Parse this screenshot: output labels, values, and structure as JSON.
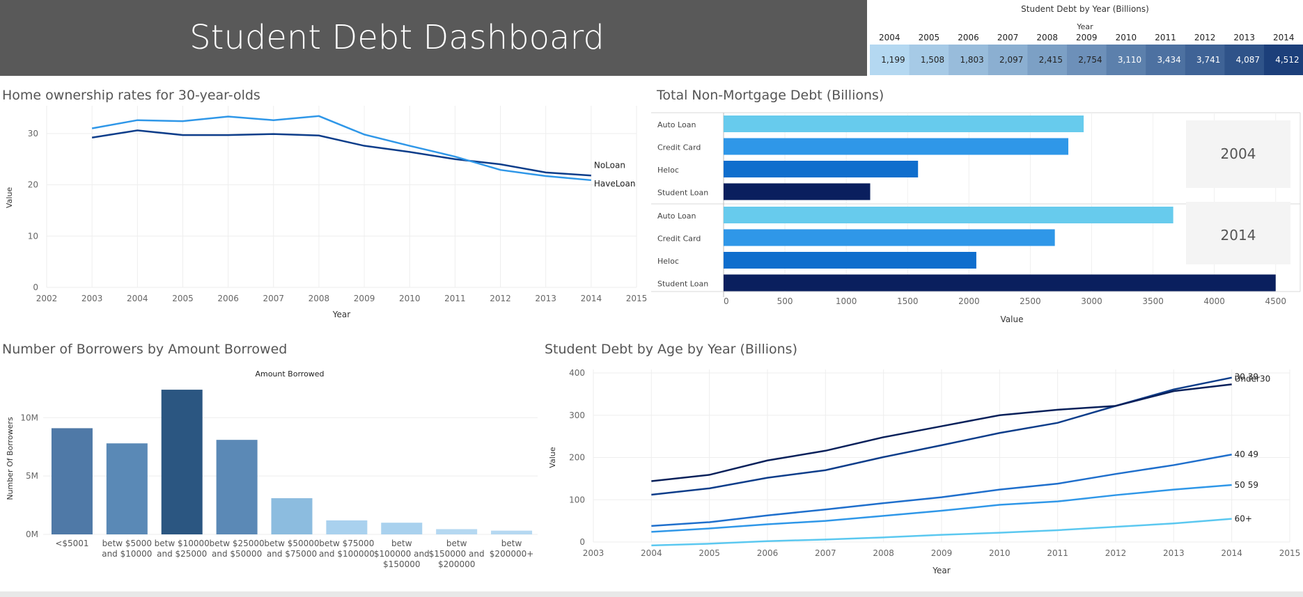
{
  "dashboard": {
    "title": "Student Debt Dashboard"
  },
  "charts": {
    "year_table_title": "Student Debt by Year (Billions)",
    "year_table_header": "Year",
    "home_title": "Home ownership rates for 30-year-olds",
    "nonmortgage_title": "Total Non-Mortgage Debt (Billions)",
    "borrowers_title": "Number of Borrowers by Amount Borrowed",
    "age_title": "Student Debt by Age by Year (Billions)"
  },
  "colors": {
    "title_bar": "#595959",
    "header_text": "#ffffff"
  },
  "chart_data": [
    {
      "type": "table",
      "title": "Student Debt by Year (Billions)",
      "header": "Year",
      "years": [
        "2004",
        "2005",
        "2006",
        "2007",
        "2008",
        "2009",
        "2010",
        "2011",
        "2012",
        "2013",
        "2014"
      ],
      "values": [
        1199,
        1508,
        1803,
        2097,
        2415,
        2754,
        3110,
        3434,
        3741,
        4087,
        4512
      ],
      "labels": [
        "1,199",
        "1,508",
        "1,803",
        "2,097",
        "2,415",
        "2,754",
        "3,110",
        "3,434",
        "3,741",
        "4,087",
        "4,512"
      ]
    },
    {
      "type": "line",
      "title": "Home ownership rates for 30-year-olds",
      "xlabel": "Year",
      "ylabel": "Value",
      "x": [
        2003,
        2004,
        2005,
        2006,
        2007,
        2008,
        2009,
        2010,
        2011,
        2012,
        2013,
        2014
      ],
      "xlim": [
        2002,
        2015
      ],
      "xticks": [
        2002,
        2003,
        2004,
        2005,
        2006,
        2007,
        2008,
        2009,
        2010,
        2011,
        2012,
        2013,
        2014,
        2015
      ],
      "ylim": [
        0,
        35
      ],
      "yticks": [
        0,
        10,
        20,
        30
      ],
      "series": [
        {
          "name": "NoLoan",
          "color": "#0d3d8a",
          "values": [
            29.2,
            30.6,
            29.7,
            29.7,
            29.9,
            29.6,
            27.6,
            26.4,
            25.0,
            24.0,
            22.4,
            21.8
          ]
        },
        {
          "name": "HaveLoan",
          "color": "#2f97e8",
          "values": [
            31.0,
            32.6,
            32.4,
            33.3,
            32.6,
            33.4,
            29.8,
            27.6,
            25.5,
            22.9,
            21.7,
            20.9
          ]
        }
      ]
    },
    {
      "type": "bar",
      "orientation": "horizontal",
      "title": "Total Non-Mortgage Debt (Billions)",
      "xlabel": "Value",
      "xlim": [
        0,
        4700
      ],
      "xticks": [
        0,
        500,
        1000,
        1500,
        2000,
        2500,
        3000,
        3500,
        4000,
        4500
      ],
      "categories": [
        "Auto Loan",
        "Credit Card",
        "Heloc",
        "Student Loan"
      ],
      "category_colors": [
        "#67cbed",
        "#2f97e8",
        "#0f6ecd",
        "#0a1f5e"
      ],
      "panels": [
        {
          "label": "2004",
          "values": [
            2935,
            2810,
            1585,
            1195
          ]
        },
        {
          "label": "2014",
          "values": [
            3665,
            2700,
            2060,
            4500
          ]
        }
      ]
    },
    {
      "type": "bar",
      "title": "Number of Borrowers by Amount Borrowed",
      "header": "Amount Borrowed",
      "ylabel": "Number Of Borrowers",
      "ylim": [
        0,
        13000000
      ],
      "yticks": [
        0,
        5000000,
        10000000
      ],
      "ytick_labels": [
        "0M",
        "5M",
        "10M"
      ],
      "categories": [
        [
          "<$5001"
        ],
        [
          "betw $5000",
          "and $10000"
        ],
        [
          "betw $10000",
          "and $25000"
        ],
        [
          "betw $25000",
          "and $50000"
        ],
        [
          "betw $50000",
          "and $75000"
        ],
        [
          "betw $75000",
          "and $100000"
        ],
        [
          "betw",
          "$100000 and",
          "$150000"
        ],
        [
          "betw",
          "$150000 and",
          "$200000"
        ],
        [
          "betw",
          "$200000+"
        ]
      ],
      "values": [
        9100000,
        7800000,
        12400000,
        8100000,
        3100000,
        1200000,
        1000000,
        450000,
        320000
      ],
      "colors": [
        "#4f79a7",
        "#5a89b6",
        "#2b5681",
        "#5b89b6",
        "#8cbcdf",
        "#a9d1ee",
        "#a9d1ee",
        "#b5d8f1",
        "#b5d8f1"
      ]
    },
    {
      "type": "line",
      "title": "Student Debt by Age by Year (Billions)",
      "xlabel": "Year",
      "ylabel": "Value",
      "x": [
        2004,
        2005,
        2006,
        2007,
        2008,
        2009,
        2010,
        2011,
        2012,
        2013,
        2014
      ],
      "xlim": [
        2003,
        2015
      ],
      "xticks": [
        2003,
        2004,
        2005,
        2006,
        2007,
        2008,
        2009,
        2010,
        2011,
        2012,
        2013,
        2014,
        2015
      ],
      "ylim": [
        0,
        400
      ],
      "yticks": [
        0,
        100,
        200,
        300,
        400
      ],
      "series": [
        {
          "name": "30 39",
          "color": "#0d3d8a",
          "values": [
            112,
            127,
            152,
            170,
            201,
            229,
            258,
            282,
            322,
            361,
            389
          ]
        },
        {
          "name": "Under30",
          "color": "#08205a",
          "values": [
            144,
            159,
            193,
            216,
            248,
            274,
            300,
            313,
            322,
            357,
            373
          ]
        },
        {
          "name": "40 49",
          "color": "#1f6fcc",
          "values": [
            38,
            47,
            63,
            77,
            92,
            106,
            124,
            138,
            161,
            182,
            207
          ]
        },
        {
          "name": "50 59",
          "color": "#2f97e8",
          "values": [
            24,
            32,
            42,
            50,
            62,
            74,
            88,
            96,
            111,
            124,
            135
          ]
        },
        {
          "name": "60+",
          "color": "#5bc8f0",
          "values": [
            -8,
            -4,
            2,
            6,
            11,
            17,
            22,
            28,
            36,
            44,
            55
          ]
        }
      ]
    }
  ]
}
